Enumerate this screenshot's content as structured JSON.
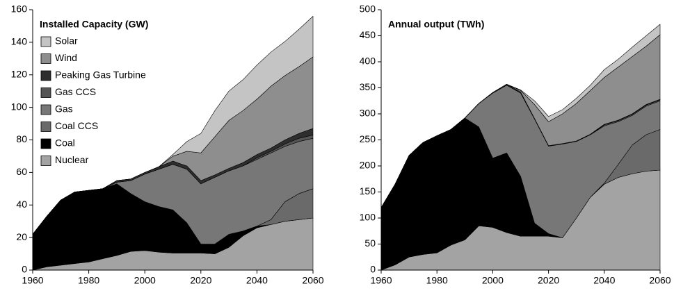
{
  "chart_data": [
    {
      "type": "stacked_area",
      "title": "Installed Capacity (GW)",
      "legend": true,
      "legend_location": "upper left",
      "x": [
        1960,
        1965,
        1970,
        1975,
        1980,
        1985,
        1990,
        1995,
        2000,
        2005,
        2010,
        2015,
        2020,
        2025,
        2030,
        2035,
        2040,
        2045,
        2050,
        2055,
        2060
      ],
      "xlim": [
        1960,
        2060
      ],
      "xticks": [
        1960,
        1980,
        2000,
        2020,
        2040,
        2060
      ],
      "ylim": [
        0,
        160
      ],
      "yticks": [
        0,
        20,
        40,
        60,
        80,
        100,
        120,
        140,
        160
      ],
      "series": [
        {
          "name": "Solar",
          "color": "#c4c4c4",
          "values": [
            0,
            0,
            0,
            0,
            0,
            0,
            0,
            0,
            0,
            0,
            1,
            6,
            12,
            16,
            18,
            19,
            21,
            21,
            21,
            23,
            25
          ]
        },
        {
          "name": "Wind",
          "color": "#8e8e8e",
          "values": [
            0,
            0,
            0,
            0,
            0,
            0,
            0,
            0,
            0,
            0,
            3,
            9,
            17,
            23.5,
            29.5,
            32,
            34,
            38,
            39.5,
            41,
            44
          ]
        },
        {
          "name": "Peaking Gas Turbine",
          "color": "#2e2e2e",
          "values": [
            0,
            0,
            0,
            0,
            0,
            0,
            1,
            1,
            1,
            1.5,
            2,
            2,
            2,
            1.5,
            1.5,
            2,
            2,
            2,
            2.5,
            3,
            4
          ]
        },
        {
          "name": "Gas CCS",
          "color": "#555555",
          "values": [
            0,
            0,
            0,
            0,
            0,
            0,
            0,
            0,
            0,
            0,
            0,
            0,
            0,
            0,
            0,
            0,
            1,
            1,
            1.5,
            2,
            2
          ]
        },
        {
          "name": "Gas",
          "color": "#777777",
          "values": [
            0,
            0,
            0,
            0,
            0,
            0,
            1,
            8,
            17,
            23,
            28,
            33,
            37,
            41,
            39,
            40,
            41,
            41,
            34,
            32,
            31
          ]
        },
        {
          "name": "Coal CCS",
          "color": "#6a6a6a",
          "values": [
            0,
            0,
            0,
            0,
            0,
            0,
            0,
            0,
            0,
            0,
            0,
            0,
            0,
            0,
            0,
            0,
            0,
            3,
            12,
            16,
            18
          ]
        },
        {
          "name": "Coal",
          "color": "#000000",
          "values": [
            22,
            31,
            40,
            44,
            44,
            43,
            44,
            35.5,
            30,
            28,
            26.5,
            18.5,
            5.5,
            6,
            8,
            3,
            1,
            0,
            0,
            0,
            0
          ]
        },
        {
          "name": "Nuclear",
          "color": "#a3a3a3",
          "values": [
            0,
            2,
            3,
            4,
            5,
            7,
            9,
            11.5,
            12,
            11,
            10.5,
            10.5,
            10.5,
            10,
            14,
            21,
            26,
            28,
            30,
            31,
            32
          ]
        }
      ]
    },
    {
      "type": "stacked_area",
      "title": "Annual output (TWh)",
      "legend": false,
      "x": [
        1960,
        1965,
        1970,
        1975,
        1980,
        1985,
        1990,
        1995,
        2000,
        2005,
        2010,
        2015,
        2020,
        2025,
        2030,
        2035,
        2040,
        2045,
        2050,
        2055,
        2060
      ],
      "xlim": [
        1960,
        2060
      ],
      "xticks": [
        1960,
        1980,
        2000,
        2020,
        2040,
        2060
      ],
      "ylim": [
        0,
        500
      ],
      "yticks": [
        0,
        50,
        100,
        150,
        200,
        250,
        300,
        350,
        400,
        450,
        500
      ],
      "series": [
        {
          "color": "#c4c4c4",
          "values": [
            0,
            0,
            0,
            0,
            0,
            0,
            0,
            0,
            0,
            0,
            1,
            7,
            10,
            8,
            10,
            10,
            15,
            15,
            18,
            20,
            20
          ]
        },
        {
          "color": "#8e8e8e",
          "values": [
            0,
            0,
            0,
            0,
            0,
            0,
            0,
            0,
            0,
            0,
            3,
            27,
            46,
            57,
            72,
            84,
            90,
            102,
            110,
            112,
            124
          ]
        },
        {
          "color": "#2e2e2e",
          "values": [
            0,
            0,
            0,
            0,
            0,
            0,
            0,
            0,
            1,
            2,
            2,
            1,
            1,
            1,
            1,
            1,
            1,
            1,
            1,
            1,
            1
          ]
        },
        {
          "color": "#555555",
          "values": [
            0,
            0,
            0,
            0,
            0,
            0,
            0,
            0,
            0,
            0,
            0,
            0,
            0,
            0,
            0,
            0,
            2,
            2,
            2,
            2,
            2
          ]
        },
        {
          "color": "#777777",
          "values": [
            0,
            0,
            0,
            0,
            0,
            0,
            0,
            45,
            125,
            130,
            160,
            200,
            168,
            180,
            147,
            120,
            110,
            82,
            57,
            55,
            55
          ]
        },
        {
          "color": "#6a6a6a",
          "values": [
            0,
            0,
            0,
            0,
            0,
            0,
            0,
            0,
            0,
            0,
            0,
            0,
            0,
            0,
            0,
            0,
            2,
            25,
            55,
            70,
            78
          ]
        },
        {
          "color": "#000000",
          "values": [
            120,
            155,
            195,
            215,
            225,
            222,
            234,
            190,
            133,
            153,
            115,
            25,
            5,
            0,
            0,
            0,
            0,
            0,
            0,
            0,
            0
          ]
        },
        {
          "color": "#a3a3a3",
          "values": [
            0,
            10,
            25,
            30,
            33,
            48,
            58,
            85,
            82,
            72,
            65,
            65,
            65,
            62,
            100,
            140,
            165,
            178,
            185,
            190,
            192
          ]
        }
      ]
    }
  ]
}
